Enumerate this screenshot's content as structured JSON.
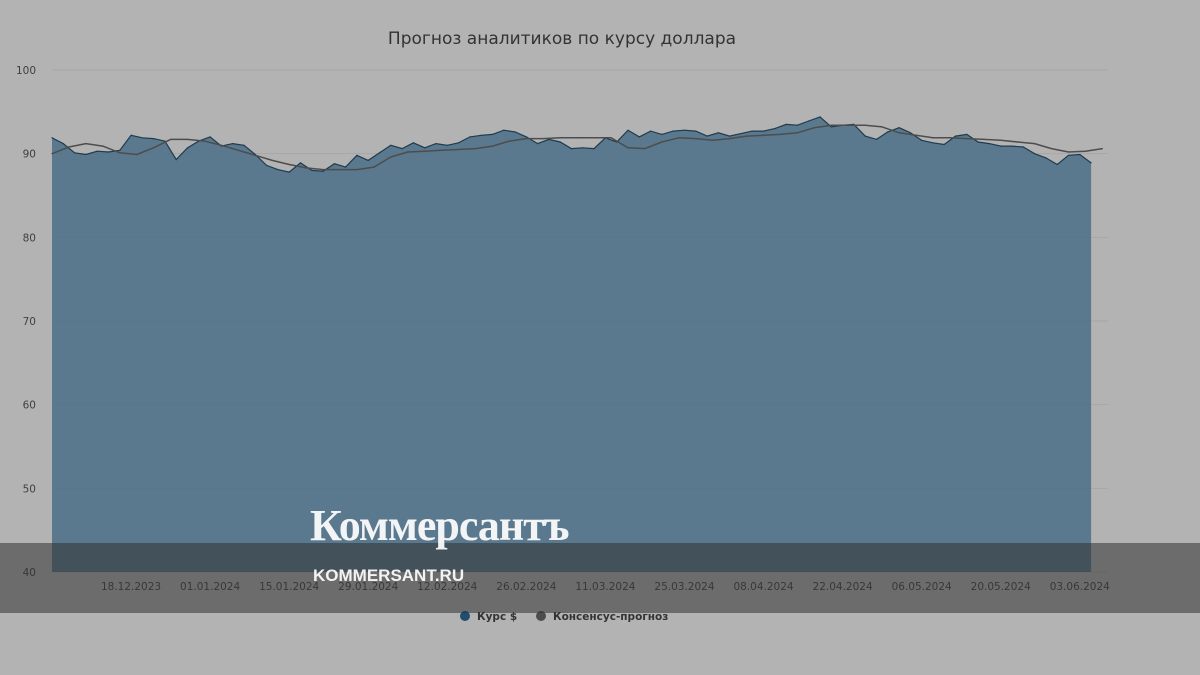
{
  "chart_data": {
    "type": "area",
    "title": "Прогноз аналитиков по курсу доллара",
    "ylim": [
      40,
      100
    ],
    "yticks": [
      40,
      50,
      60,
      70,
      80,
      90,
      100
    ],
    "xticks": [
      "18.12.2023",
      "01.01.2024",
      "15.01.2024",
      "29.01.2024",
      "12.02.2024",
      "26.02.2024",
      "11.03.2024",
      "25.03.2024",
      "08.04.2024",
      "22.04.2024",
      "06.05.2024",
      "20.05.2024",
      "03.06.2024"
    ],
    "grid": true,
    "legend_position": "bottom-center",
    "series": [
      {
        "name": "Курс $",
        "type": "area",
        "color": "#4a6f87",
        "x": [
          "2023-12-04",
          "2023-12-06",
          "2023-12-08",
          "2023-12-10",
          "2023-12-12",
          "2023-12-14",
          "2023-12-16",
          "2023-12-18",
          "2023-12-20",
          "2023-12-22",
          "2023-12-24",
          "2023-12-26",
          "2023-12-28",
          "2023-12-30",
          "2024-01-01",
          "2024-01-03",
          "2024-01-05",
          "2024-01-07",
          "2024-01-09",
          "2024-01-11",
          "2024-01-13",
          "2024-01-15",
          "2024-01-17",
          "2024-01-19",
          "2024-01-21",
          "2024-01-23",
          "2024-01-25",
          "2024-01-27",
          "2024-01-29",
          "2024-01-31",
          "2024-02-02",
          "2024-02-04",
          "2024-02-06",
          "2024-02-08",
          "2024-02-10",
          "2024-02-12",
          "2024-02-14",
          "2024-02-16",
          "2024-02-18",
          "2024-02-20",
          "2024-02-22",
          "2024-02-24",
          "2024-02-26",
          "2024-02-28",
          "2024-03-01",
          "2024-03-03",
          "2024-03-05",
          "2024-03-07",
          "2024-03-09",
          "2024-03-11",
          "2024-03-13",
          "2024-03-15",
          "2024-03-17",
          "2024-03-19",
          "2024-03-21",
          "2024-03-23",
          "2024-03-25",
          "2024-03-27",
          "2024-03-29",
          "2024-03-31",
          "2024-04-02",
          "2024-04-04",
          "2024-04-06",
          "2024-04-08",
          "2024-04-10",
          "2024-04-12",
          "2024-04-14",
          "2024-04-16",
          "2024-04-18",
          "2024-04-20",
          "2024-04-22",
          "2024-04-24",
          "2024-04-26",
          "2024-04-28",
          "2024-04-30",
          "2024-05-02",
          "2024-05-04",
          "2024-05-06",
          "2024-05-08",
          "2024-05-10",
          "2024-05-12",
          "2024-05-14",
          "2024-05-16",
          "2024-05-18",
          "2024-05-20",
          "2024-05-22",
          "2024-05-24",
          "2024-05-26",
          "2024-05-28",
          "2024-05-30",
          "2024-06-01",
          "2024-06-03",
          "2024-06-05"
        ],
        "values": [
          91.9,
          91.2,
          90.1,
          89.9,
          90.3,
          90.2,
          90.4,
          92.2,
          91.9,
          91.8,
          91.5,
          89.3,
          90.7,
          91.5,
          92.0,
          90.9,
          91.2,
          91.0,
          89.9,
          88.6,
          88.1,
          87.8,
          88.9,
          88.0,
          87.9,
          88.8,
          88.4,
          89.8,
          89.2,
          90.1,
          91.0,
          90.6,
          91.3,
          90.7,
          91.2,
          91.0,
          91.3,
          92.0,
          92.2,
          92.3,
          92.8,
          92.6,
          92.0,
          91.2,
          91.7,
          91.4,
          90.6,
          90.7,
          90.6,
          91.9,
          91.4,
          92.8,
          92.0,
          92.7,
          92.3,
          92.7,
          92.8,
          92.7,
          92.1,
          92.5,
          92.1,
          92.4,
          92.7,
          92.7,
          93.0,
          93.5,
          93.4,
          93.9,
          94.4,
          93.2,
          93.4,
          93.5,
          92.1,
          91.7,
          92.6,
          93.1,
          92.5,
          91.6,
          91.3,
          91.1,
          92.1,
          92.3,
          91.4,
          91.2,
          90.9,
          90.9,
          90.8,
          90.0,
          89.5,
          88.7,
          89.8,
          89.9,
          88.9
        ]
      },
      {
        "name": "Консенсус-прогноз",
        "type": "line",
        "color": "#4d4d4d",
        "x": [
          "2023-12-04",
          "2023-12-07",
          "2023-12-10",
          "2023-12-13",
          "2023-12-16",
          "2023-12-19",
          "2023-12-22",
          "2023-12-25",
          "2023-12-28",
          "2023-12-31",
          "2024-01-03",
          "2024-01-06",
          "2024-01-09",
          "2024-01-12",
          "2024-01-15",
          "2024-01-18",
          "2024-01-21",
          "2024-01-24",
          "2024-01-27",
          "2024-01-30",
          "2024-02-02",
          "2024-02-05",
          "2024-02-08",
          "2024-02-11",
          "2024-02-14",
          "2024-02-17",
          "2024-02-20",
          "2024-02-23",
          "2024-02-26",
          "2024-02-29",
          "2024-03-03",
          "2024-03-06",
          "2024-03-09",
          "2024-03-12",
          "2024-03-15",
          "2024-03-18",
          "2024-03-21",
          "2024-03-24",
          "2024-03-27",
          "2024-03-30",
          "2024-04-02",
          "2024-04-05",
          "2024-04-08",
          "2024-04-11",
          "2024-04-14",
          "2024-04-17",
          "2024-04-20",
          "2024-04-23",
          "2024-04-26",
          "2024-04-29",
          "2024-05-02",
          "2024-05-05",
          "2024-05-08",
          "2024-05-11",
          "2024-05-14",
          "2024-05-17",
          "2024-05-20",
          "2024-05-23",
          "2024-05-26",
          "2024-05-29",
          "2024-06-01",
          "2024-06-04",
          "2024-06-07"
        ],
        "values": [
          90.0,
          90.8,
          91.2,
          90.9,
          90.1,
          89.9,
          90.7,
          91.7,
          91.7,
          91.5,
          91.0,
          90.4,
          89.8,
          89.2,
          88.7,
          88.3,
          88.1,
          88.1,
          88.1,
          88.4,
          89.6,
          90.2,
          90.3,
          90.4,
          90.5,
          90.6,
          90.9,
          91.5,
          91.8,
          91.8,
          91.9,
          91.9,
          91.9,
          91.9,
          90.7,
          90.6,
          91.4,
          91.9,
          91.8,
          91.6,
          91.8,
          92.1,
          92.2,
          92.3,
          92.5,
          93.1,
          93.4,
          93.4,
          93.4,
          93.2,
          92.5,
          92.2,
          91.9,
          91.9,
          91.8,
          91.7,
          91.6,
          91.4,
          91.2,
          90.6,
          90.2,
          90.3,
          90.6
        ]
      }
    ]
  },
  "watermark": {
    "brand": "Коммерсантъ",
    "url": "KOMMERSANT.RU"
  }
}
